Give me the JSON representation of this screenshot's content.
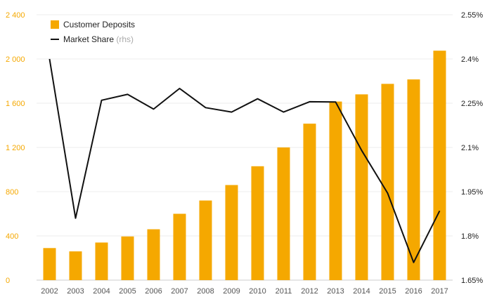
{
  "chart_data": {
    "type": "bar",
    "categories": [
      "2002",
      "2003",
      "2004",
      "2005",
      "2006",
      "2007",
      "2008",
      "2009",
      "2010",
      "2011",
      "2012",
      "2013",
      "2014",
      "2015",
      "2016",
      "2017"
    ],
    "series": [
      {
        "name": "Customer Deposits",
        "type": "bar",
        "axis": "left",
        "color": "#f5a800",
        "values": [
          290,
          260,
          340,
          395,
          460,
          600,
          720,
          860,
          1030,
          1200,
          1415,
          1615,
          1680,
          1775,
          1815,
          2075
        ]
      },
      {
        "name": "Market Share",
        "type": "line",
        "axis": "right",
        "color": "#111111",
        "values": [
          2.4,
          1.86,
          2.26,
          2.28,
          2.23,
          2.3,
          2.235,
          2.22,
          2.265,
          2.22,
          2.255,
          2.254,
          2.09,
          1.945,
          1.71,
          1.885
        ]
      }
    ],
    "legend": {
      "deposits_label": "Customer Deposits",
      "share_label": "Market Share",
      "share_suffix": "(rhs)",
      "placement": "top-left"
    },
    "y_left": {
      "ylim": [
        0,
        2400
      ],
      "ticks": [
        0,
        400,
        800,
        1200,
        1600,
        2000,
        2400
      ],
      "tick_labels": [
        "0",
        "400",
        "800",
        "1 200",
        "1 600",
        "2 000",
        "2 400"
      ],
      "color": "#f5a800"
    },
    "y_right": {
      "ylim": [
        1.65,
        2.55
      ],
      "ticks": [
        1.65,
        1.8,
        1.95,
        2.1,
        2.25,
        2.4,
        2.55
      ],
      "tick_labels": [
        "1.65%",
        "1.8%",
        "1.95%",
        "2.1%",
        "2.25%",
        "2.4%",
        "2.55%"
      ]
    },
    "grid": true
  }
}
